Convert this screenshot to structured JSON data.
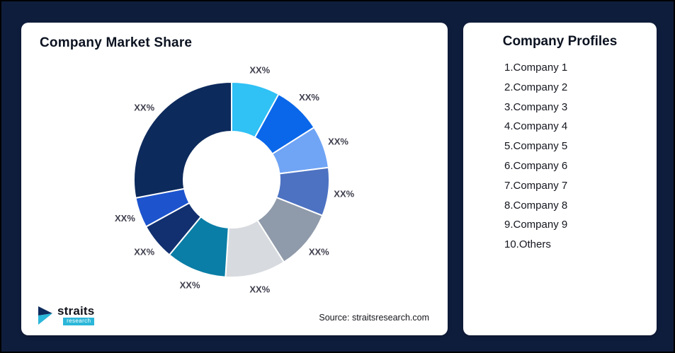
{
  "page": {
    "background_color": "#0f1d3d"
  },
  "chart_card": {
    "title": "Company Market Share",
    "source": "Source: straitsresearch.com"
  },
  "logo": {
    "name": "straits",
    "sub": "research",
    "accent_color": "#2bb7d9",
    "dark_color": "#0d2a5c"
  },
  "profiles_card": {
    "title": "Company Profiles",
    "items": [
      "1.Company 1",
      "2.Company 2",
      "3.Company 3",
      "4.Company 4",
      "5.Company 5",
      "6.Company 6",
      "7.Company 7",
      "8.Company 8",
      "9.Company 9",
      "10.Others"
    ]
  },
  "chart_data": {
    "type": "pie",
    "subtype": "donut",
    "title": "Company Market Share",
    "legend": "none",
    "start_angle_deg": 0,
    "direction": "clockwise",
    "segments": [
      {
        "label": "XX%",
        "value": 8,
        "color": "#30c1f5"
      },
      {
        "label": "XX%",
        "value": 8,
        "color": "#0a67e9"
      },
      {
        "label": "XX%",
        "value": 7,
        "color": "#70a4f5"
      },
      {
        "label": "XX%",
        "value": 8,
        "color": "#4d72c2"
      },
      {
        "label": "XX%",
        "value": 10,
        "color": "#8f9aaa"
      },
      {
        "label": "XX%",
        "value": 10,
        "color": "#d7dade"
      },
      {
        "label": "XX%",
        "value": 10,
        "color": "#0a7ea6"
      },
      {
        "label": "XX%",
        "value": 6,
        "color": "#12306f"
      },
      {
        "label": "XX%",
        "value": 5,
        "color": "#1d54ce"
      },
      {
        "label": "XX%",
        "value": 28,
        "color": "#0d2a5c"
      }
    ]
  }
}
